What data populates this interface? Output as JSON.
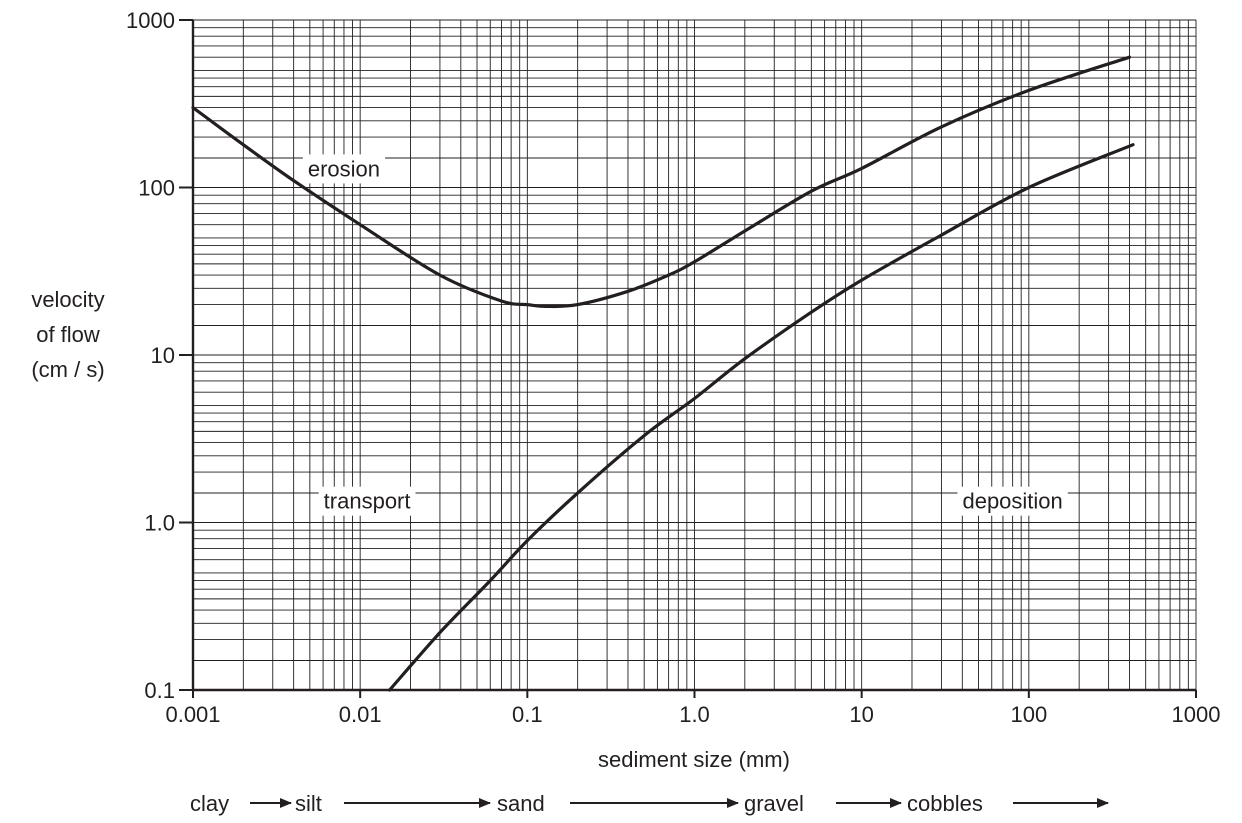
{
  "chart_data": {
    "type": "line",
    "title": "",
    "xlabel": "sediment size (mm)",
    "ylabel_lines": [
      "velocity",
      "of flow",
      "(cm / s)"
    ],
    "x_scale": "log",
    "y_scale": "log",
    "xlim": [
      0.001,
      1000
    ],
    "ylim": [
      0.1,
      1000
    ],
    "grid": true,
    "x_ticks": [
      {
        "value": 0.001,
        "label": "0.001"
      },
      {
        "value": 0.01,
        "label": "0.01"
      },
      {
        "value": 0.1,
        "label": "0.1"
      },
      {
        "value": 1,
        "label": "1.0"
      },
      {
        "value": 10,
        "label": "10"
      },
      {
        "value": 100,
        "label": "100"
      },
      {
        "value": 1000,
        "label": "1000"
      }
    ],
    "y_ticks": [
      {
        "value": 0.1,
        "label": "0.1"
      },
      {
        "value": 1,
        "label": "1.0"
      },
      {
        "value": 10,
        "label": "10"
      },
      {
        "value": 100,
        "label": "100"
      },
      {
        "value": 1000,
        "label": "1000"
      }
    ],
    "series": [
      {
        "x": [
          0.001,
          0.002,
          0.004,
          0.01,
          0.03,
          0.07,
          0.1,
          0.13,
          0.2,
          0.4,
          0.7,
          1,
          2,
          5,
          10,
          30,
          100,
          400
        ],
        "y": [
          300,
          180,
          110,
          60,
          30,
          21,
          20,
          19.5,
          20,
          24,
          30,
          36,
          55,
          95,
          130,
          230,
          380,
          600
        ]
      },
      {
        "x": [
          0.015,
          0.03,
          0.06,
          0.1,
          0.2,
          0.5,
          1,
          2,
          5,
          10,
          30,
          100,
          420
        ],
        "y": [
          0.1,
          0.22,
          0.45,
          0.78,
          1.5,
          3.3,
          5.5,
          9.5,
          18,
          28,
          52,
          100,
          180
        ]
      }
    ],
    "annotations": [
      {
        "text": "erosion",
        "x": 0.008,
        "y": 130
      },
      {
        "text": "transport",
        "x": 0.011,
        "y": 1.35
      },
      {
        "text": "deposition",
        "x": 80,
        "y": 1.35
      }
    ]
  },
  "size_scale": {
    "labels": [
      "clay",
      "silt",
      "sand",
      "gravel",
      "cobbles"
    ]
  }
}
